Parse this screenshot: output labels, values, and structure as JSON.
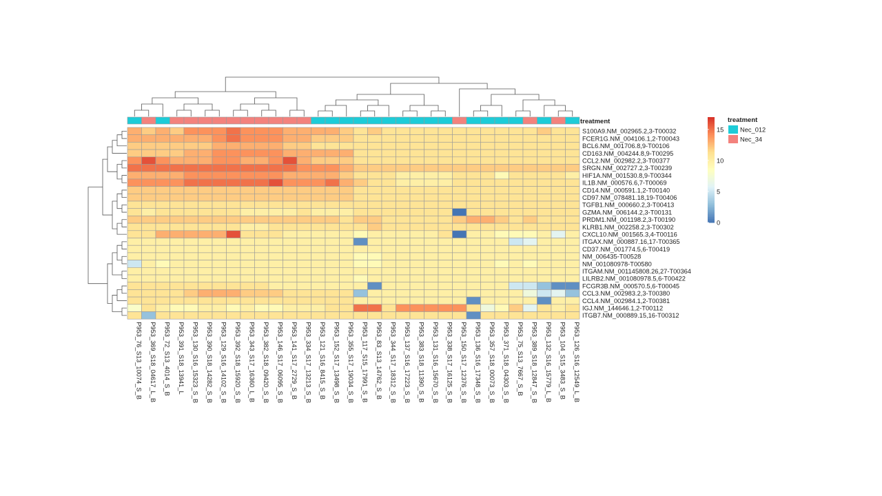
{
  "chart_data": {
    "type": "heatmap",
    "title": "",
    "annotation": {
      "title": "treatment",
      "legend_title": "treatment",
      "levels": [
        {
          "name": "Nec_012",
          "color": "#1ECCD8"
        },
        {
          "name": "Nec_34",
          "color": "#F3827D"
        }
      ]
    },
    "colorbar": {
      "min": 0,
      "max": 17,
      "ticks": [
        0,
        5,
        10,
        15
      ],
      "colors": [
        "#4575B4",
        "#91BFDB",
        "#E0F3F8",
        "#FFFFBF",
        "#FEE090",
        "#FC8D59",
        "#D73027"
      ]
    },
    "rows": [
      "S100A9.NM_002965.2,3-T00032",
      "FCER1G.NM_004106.1,2-T00043",
      "BCL6.NM_001706.8,9-T00106",
      "CD163.NM_004244.8,9-T00295",
      "CCL2.NM_002982.2,3-T00377",
      "SRGN.NM_002727.2,3-T00239",
      "HIF1A.NM_001530.8,9-T00344",
      "IL1B.NM_000576.6,7-T00069",
      "CD14.NM_000591.1,2-T00140",
      "CD97.NM_078481.18,19-T00406",
      "TGFB1.NM_000660.2,3-T00413",
      "GZMA.NM_006144.2,3-T00131",
      "PRDM1.NM_001198.2,3-T00190",
      "KLRB1.NM_002258.2,3-T00302",
      "CXCL10.NM_001565.3,4-T00116",
      "ITGAX.NM_000887.16,17-T00365",
      "CD37.NM_001774.5,6-T00419",
      "NM_006435-T00528",
      "NM_001080978-T00580",
      "ITGAM.NM_001145808.26,27-T00364",
      "LILRB2.NM_001080978.5,6-T00422",
      "FCGR3B.NM_000570.5,6-T00045",
      "CCL3.NM_002983.2,3-T00380",
      "CCL4.NM_002984.1,2-T00381",
      "IGJ.NM_144646.1,2-T00112",
      "ITGB7.NM_000889.15,16-T00312"
    ],
    "columns": [
      "P953_76_S13_10074_S_B",
      "P953_369_S18_04617_L_B",
      "P953_72_S13_4014_S_B",
      "P953_391_S18_13941_L",
      "P953_130_S16_15323_S_B",
      "P953_390_S18_14282_S_B",
      "P953_129_S16_14102_S_B",
      "P953_392_S18_15920_S_B",
      "P953_343_S17_16360_L_B",
      "P953_382_S18_09420_S_B",
      "P953_146_S17_06095_S_B",
      "P953_141_S17_2729_S_B",
      "P953_334_S17_13213_S_B",
      "P953_121_S16_8415_S_B",
      "P953_152_S17_13498_S_B",
      "P953_355_S17_19034_S_B",
      "P953_117_S15_17991_S_B",
      "P953_83_S13_14762_S_B",
      "P953_344_S17_18312_S_B",
      "P953_137_S16_17223_S_B",
      "P953_383_S18_11390_S_B",
      "P953_131_S16_15670_S_B",
      "P953_338_S17_16125_S_B",
      "P953_150_S17_12376_S_B",
      "P953_136_S16_17348_S_B",
      "P953_357_S18_00073_S_B",
      "P953_371_S18_04303_S_B",
      "P953_75_S13_7667_S_B",
      "P953_389_S18_12847_S_B",
      "P953_132_S16_15779_L_B",
      "P953_104_S15_3483_S_B",
      "P953_126_S16_12549_L_B"
    ],
    "column_treatment": [
      "Nec_012",
      "Nec_34",
      "Nec_012",
      "Nec_34",
      "Nec_34",
      "Nec_34",
      "Nec_34",
      "Nec_34",
      "Nec_34",
      "Nec_34",
      "Nec_34",
      "Nec_34",
      "Nec_34",
      "Nec_012",
      "Nec_012",
      "Nec_012",
      "Nec_012",
      "Nec_012",
      "Nec_012",
      "Nec_012",
      "Nec_012",
      "Nec_012",
      "Nec_012",
      "Nec_34",
      "Nec_012",
      "Nec_012",
      "Nec_012",
      "Nec_012",
      "Nec_34",
      "Nec_012",
      "Nec_34",
      "Nec_012"
    ],
    "values": [
      [
        13,
        12,
        13,
        12,
        14,
        14,
        14,
        15,
        14,
        14,
        14,
        13,
        13,
        13,
        13,
        12,
        11,
        12,
        11,
        11,
        11,
        11,
        11,
        11,
        11,
        11,
        11,
        11,
        11,
        12,
        11,
        11
      ],
      [
        13,
        13,
        13,
        13,
        13,
        13,
        14,
        15,
        14,
        14,
        14,
        13,
        13,
        12,
        12,
        12,
        11,
        11,
        11,
        11,
        11,
        11,
        11,
        11,
        11,
        11,
        11,
        11,
        11,
        11,
        11,
        11
      ],
      [
        12,
        12,
        12,
        12,
        12,
        12,
        13,
        13,
        13,
        13,
        13,
        12,
        12,
        11,
        11,
        11,
        11,
        11,
        11,
        11,
        11,
        11,
        11,
        11,
        11,
        11,
        11,
        11,
        11,
        11,
        11,
        11
      ],
      [
        12,
        12,
        12,
        12,
        13,
        13,
        14,
        14,
        14,
        14,
        14,
        13,
        13,
        13,
        13,
        13,
        11,
        11,
        11,
        11,
        11,
        11,
        11,
        11,
        11,
        11,
        11,
        11,
        11,
        11,
        11,
        11
      ],
      [
        14,
        16,
        14,
        13,
        13,
        13,
        14,
        14,
        13,
        13,
        14,
        16,
        13,
        12,
        12,
        12,
        11,
        11,
        11,
        11,
        11,
        11,
        11,
        11,
        11,
        11,
        11,
        11,
        11,
        11,
        11,
        11
      ],
      [
        15,
        15,
        15,
        15,
        15,
        15,
        15,
        15,
        15,
        15,
        15,
        15,
        14,
        14,
        14,
        13,
        12,
        12,
        12,
        12,
        12,
        12,
        12,
        12,
        12,
        12,
        12,
        12,
        12,
        12,
        12,
        12
      ],
      [
        13,
        13,
        13,
        13,
        14,
        14,
        14,
        14,
        14,
        14,
        14,
        13,
        13,
        13,
        13,
        12,
        11,
        11,
        11,
        10,
        10,
        10,
        10,
        11,
        11,
        11,
        9,
        11,
        11,
        11,
        11,
        10
      ],
      [
        14,
        14,
        14,
        14,
        15,
        15,
        15,
        15,
        15,
        15,
        16,
        14,
        14,
        14,
        15,
        13,
        12,
        11,
        11,
        10,
        10,
        10,
        10,
        11,
        11,
        11,
        11,
        11,
        11,
        11,
        11,
        11
      ],
      [
        12,
        12,
        12,
        12,
        12,
        12,
        12,
        12,
        12,
        12,
        12,
        12,
        12,
        12,
        12,
        12,
        11,
        11,
        11,
        11,
        11,
        11,
        11,
        11,
        11,
        11,
        11,
        11,
        11,
        11,
        11,
        11
      ],
      [
        12,
        12,
        12,
        12,
        12,
        12,
        12,
        12,
        12,
        12,
        12,
        12,
        12,
        12,
        12,
        12,
        11,
        11,
        11,
        11,
        11,
        11,
        11,
        11,
        11,
        11,
        11,
        11,
        11,
        11,
        11,
        11
      ],
      [
        11,
        11,
        11,
        11,
        11,
        11,
        11,
        11,
        11,
        11,
        11,
        11,
        11,
        11,
        11,
        11,
        11,
        11,
        11,
        11,
        11,
        11,
        11,
        11,
        11,
        11,
        11,
        11,
        11,
        11,
        11,
        11
      ],
      [
        11,
        10,
        11,
        11,
        11,
        11,
        11,
        11,
        10,
        10,
        10,
        10,
        11,
        10,
        10,
        10,
        11,
        11,
        11,
        11,
        11,
        11,
        11,
        0,
        11,
        11,
        11,
        11,
        11,
        11,
        11,
        11
      ],
      [
        12,
        12,
        12,
        12,
        12,
        12,
        12,
        12,
        12,
        12,
        12,
        12,
        12,
        12,
        12,
        11,
        12,
        12,
        11,
        11,
        11,
        11,
        11,
        12,
        13,
        13,
        12,
        11,
        12,
        11,
        11,
        11
      ],
      [
        11,
        11,
        11,
        11,
        11,
        11,
        11,
        11,
        10,
        10,
        11,
        11,
        11,
        11,
        11,
        11,
        11,
        12,
        11,
        11,
        11,
        11,
        11,
        11,
        11,
        11,
        11,
        11,
        11,
        11,
        11,
        11
      ],
      [
        11,
        11,
        13,
        13,
        13,
        13,
        13,
        16,
        11,
        11,
        11,
        10,
        10,
        10,
        10,
        10,
        9,
        10,
        10,
        10,
        10,
        10,
        11,
        0,
        10,
        10,
        9,
        9,
        9,
        10,
        6,
        10
      ],
      [
        10,
        10,
        10,
        10,
        10,
        10,
        10,
        10,
        10,
        10,
        10,
        10,
        10,
        10,
        10,
        10,
        1,
        10,
        10,
        10,
        10,
        10,
        10,
        10,
        10,
        10,
        10,
        5,
        6,
        10,
        10,
        10
      ],
      [
        10,
        10,
        10,
        10,
        10,
        10,
        10,
        10,
        10,
        10,
        10,
        10,
        10,
        10,
        10,
        10,
        10,
        10,
        10,
        10,
        10,
        10,
        10,
        10,
        10,
        10,
        10,
        10,
        10,
        10,
        10,
        10
      ],
      [
        10,
        10,
        10,
        10,
        10,
        10,
        10,
        10,
        10,
        10,
        10,
        10,
        10,
        10,
        10,
        10,
        9,
        9,
        10,
        10,
        10,
        10,
        10,
        10,
        10,
        10,
        10,
        10,
        10,
        10,
        10,
        10
      ],
      [
        5,
        10,
        9,
        10,
        10,
        10,
        10,
        10,
        10,
        10,
        10,
        10,
        10,
        10,
        10,
        10,
        9,
        9,
        10,
        10,
        10,
        10,
        10,
        10,
        10,
        10,
        9,
        10,
        9,
        10,
        10,
        10
      ],
      [
        10,
        10,
        10,
        10,
        10,
        10,
        10,
        10,
        10,
        10,
        10,
        10,
        10,
        10,
        10,
        10,
        10,
        10,
        10,
        10,
        10,
        10,
        10,
        10,
        10,
        10,
        10,
        10,
        10,
        10,
        10,
        10
      ],
      [
        10,
        10,
        10,
        10,
        10,
        10,
        10,
        10,
        10,
        10,
        10,
        10,
        10,
        10,
        10,
        10,
        9,
        10,
        10,
        10,
        10,
        10,
        10,
        10,
        10,
        10,
        10,
        10,
        10,
        10,
        10,
        10
      ],
      [
        11,
        11,
        11,
        11,
        11,
        11,
        11,
        11,
        11,
        11,
        10,
        10,
        10,
        10,
        10,
        10,
        10,
        1,
        10,
        10,
        10,
        10,
        10,
        10,
        10,
        10,
        10,
        5,
        5,
        3,
        1,
        1
      ],
      [
        11,
        11,
        11,
        11,
        12,
        13,
        13,
        13,
        12,
        12,
        12,
        11,
        11,
        11,
        11,
        11,
        3,
        10,
        10,
        10,
        10,
        10,
        10,
        10,
        10,
        10,
        10,
        10,
        7,
        5,
        6,
        3
      ],
      [
        11,
        11,
        11,
        11,
        11,
        11,
        11,
        11,
        11,
        11,
        11,
        11,
        11,
        11,
        11,
        11,
        10,
        10,
        10,
        10,
        10,
        10,
        10,
        10,
        1,
        10,
        10,
        10,
        10,
        1,
        10,
        10
      ],
      [
        8,
        11,
        10,
        9,
        9,
        10,
        10,
        9,
        10,
        9,
        9,
        10,
        10,
        10,
        11,
        11,
        15,
        15,
        11,
        14,
        14,
        14,
        14,
        14,
        11,
        7,
        9,
        12,
        6,
        11,
        10,
        11
      ],
      [
        11,
        3,
        11,
        11,
        11,
        11,
        11,
        11,
        11,
        11,
        11,
        11,
        11,
        11,
        11,
        11,
        11,
        11,
        11,
        11,
        11,
        11,
        11,
        11,
        1,
        11,
        11,
        11,
        11,
        11,
        11,
        11
      ]
    ]
  }
}
